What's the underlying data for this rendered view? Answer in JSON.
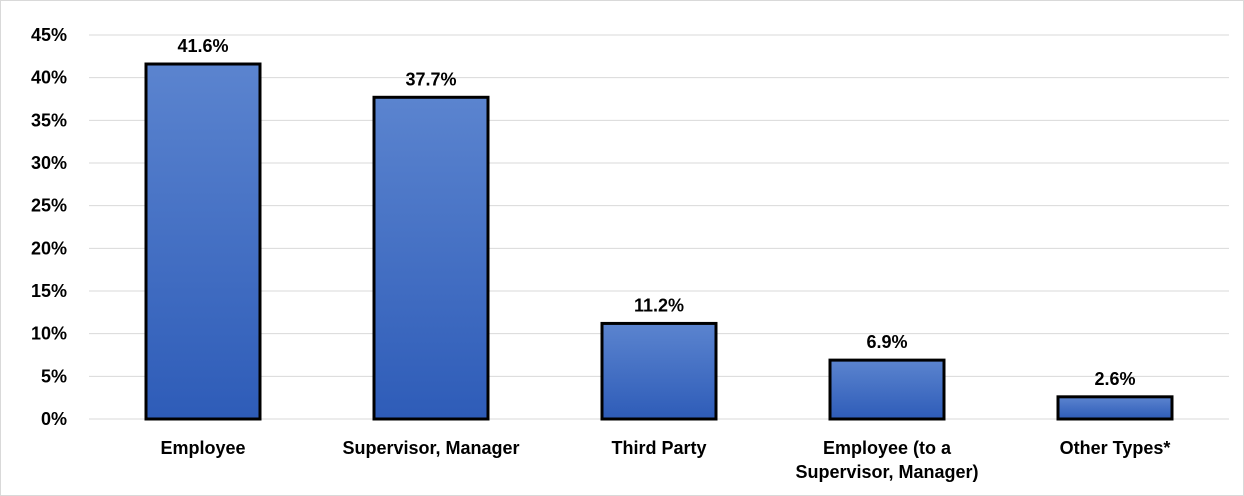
{
  "chart_data": {
    "type": "bar",
    "categories": [
      [
        "Employee"
      ],
      [
        "Supervisor, Manager"
      ],
      [
        "Third Party"
      ],
      [
        "Employee (to a",
        "Supervisor, Manager)"
      ],
      [
        "Other Types*"
      ]
    ],
    "values": [
      41.6,
      37.7,
      11.2,
      6.9,
      2.6
    ],
    "data_labels": [
      "41.6%",
      "37.7%",
      "11.2%",
      "6.9%",
      "2.6%"
    ],
    "y_ticks": [
      "0%",
      "5%",
      "10%",
      "15%",
      "20%",
      "25%",
      "30%",
      "35%",
      "40%",
      "45%"
    ],
    "ylim": [
      0,
      45
    ],
    "grid": true,
    "bar_color_top": "#5b84cf",
    "bar_color_bottom": "#2e5cb8"
  }
}
